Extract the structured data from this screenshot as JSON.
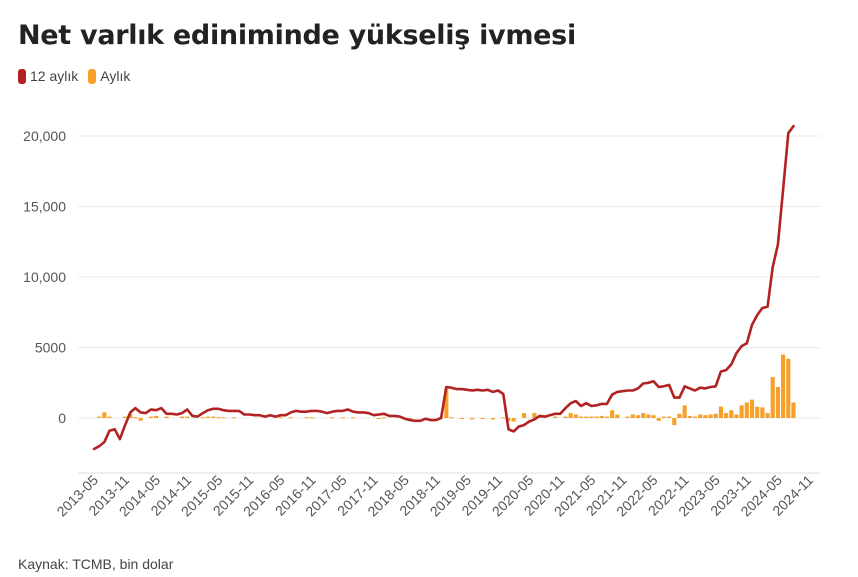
{
  "header": {
    "title": "Net varlık ediniminde yükseliş ivmesi"
  },
  "legend": [
    {
      "label": "12 aylık",
      "color": "#b22222"
    },
    {
      "label": "Aylık",
      "color": "#f7a02a"
    }
  ],
  "footer": {
    "source": "Kaynak: TCMB, bin dolar"
  },
  "chart_data": {
    "type": "line",
    "x_unit": "month",
    "xlim": [
      "2013-05",
      "2024-11"
    ],
    "ylim": [
      -4000,
      22000
    ],
    "y_ticks": [
      0,
      5000,
      10000,
      15000,
      20000
    ],
    "y_tick_labels": [
      "0",
      "5000",
      "10,000",
      "15,000",
      "20,000"
    ],
    "x_tick_labels": [
      "2013-05",
      "2013-11",
      "2014-05",
      "2014-11",
      "2015-05",
      "2015-11",
      "2016-05",
      "2016-11",
      "2017-05",
      "2017-11",
      "2018-05",
      "2018-11",
      "2019-05",
      "2019-11",
      "2020-05",
      "2020-11",
      "2021-05",
      "2021-11",
      "2022-05",
      "2022-11",
      "2023-05",
      "2023-11",
      "2024-05",
      "2024-11"
    ],
    "grid": "horizontal",
    "legend_position": "top-left",
    "series": [
      {
        "name": "12 aylık",
        "type": "line",
        "color": "#b22222",
        "points": [
          [
            "2013-05",
            -2200
          ],
          [
            "2013-06",
            -2000
          ],
          [
            "2013-07",
            -1700
          ],
          [
            "2013-08",
            -900
          ],
          [
            "2013-09",
            -800
          ],
          [
            "2013-10",
            -1500
          ],
          [
            "2013-11",
            -500
          ],
          [
            "2013-12",
            400
          ],
          [
            "2014-01",
            700
          ],
          [
            "2014-02",
            400
          ],
          [
            "2014-03",
            350
          ],
          [
            "2014-04",
            600
          ],
          [
            "2014-05",
            550
          ],
          [
            "2014-06",
            700
          ],
          [
            "2014-07",
            300
          ],
          [
            "2014-08",
            300
          ],
          [
            "2014-09",
            250
          ],
          [
            "2014-10",
            350
          ],
          [
            "2014-11",
            600
          ],
          [
            "2014-12",
            150
          ],
          [
            "2015-01",
            100
          ],
          [
            "2015-02",
            350
          ],
          [
            "2015-03",
            550
          ],
          [
            "2015-04",
            650
          ],
          [
            "2015-05",
            650
          ],
          [
            "2015-06",
            550
          ],
          [
            "2015-07",
            500
          ],
          [
            "2015-08",
            500
          ],
          [
            "2015-09",
            500
          ],
          [
            "2015-10",
            250
          ],
          [
            "2015-11",
            250
          ],
          [
            "2015-12",
            200
          ],
          [
            "2016-01",
            200
          ],
          [
            "2016-02",
            100
          ],
          [
            "2016-03",
            200
          ],
          [
            "2016-04",
            100
          ],
          [
            "2016-05",
            200
          ],
          [
            "2016-06",
            200
          ],
          [
            "2016-07",
            400
          ],
          [
            "2016-08",
            500
          ],
          [
            "2016-09",
            450
          ],
          [
            "2016-10",
            450
          ],
          [
            "2016-11",
            500
          ],
          [
            "2016-12",
            500
          ],
          [
            "2017-01",
            450
          ],
          [
            "2017-02",
            350
          ],
          [
            "2017-03",
            450
          ],
          [
            "2017-04",
            500
          ],
          [
            "2017-05",
            500
          ],
          [
            "2017-06",
            600
          ],
          [
            "2017-07",
            450
          ],
          [
            "2017-08",
            400
          ],
          [
            "2017-09",
            400
          ],
          [
            "2017-10",
            350
          ],
          [
            "2017-11",
            200
          ],
          [
            "2017-12",
            250
          ],
          [
            "2018-01",
            300
          ],
          [
            "2018-02",
            150
          ],
          [
            "2018-03",
            150
          ],
          [
            "2018-04",
            100
          ],
          [
            "2018-05",
            -50
          ],
          [
            "2018-06",
            -150
          ],
          [
            "2018-07",
            -200
          ],
          [
            "2018-08",
            -200
          ],
          [
            "2018-09",
            -50
          ],
          [
            "2018-10",
            -150
          ],
          [
            "2018-11",
            -150
          ],
          [
            "2018-12",
            0
          ],
          [
            "2019-01",
            2200
          ],
          [
            "2019-02",
            2150
          ],
          [
            "2019-03",
            2050
          ],
          [
            "2019-04",
            2050
          ],
          [
            "2019-05",
            2000
          ],
          [
            "2019-06",
            1950
          ],
          [
            "2019-07",
            2000
          ],
          [
            "2019-08",
            1950
          ],
          [
            "2019-09",
            2000
          ],
          [
            "2019-10",
            1850
          ],
          [
            "2019-11",
            1950
          ],
          [
            "2019-12",
            1700
          ],
          [
            "2020-01",
            -800
          ],
          [
            "2020-02",
            -950
          ],
          [
            "2020-03",
            -600
          ],
          [
            "2020-04",
            -500
          ],
          [
            "2020-05",
            -250
          ],
          [
            "2020-06",
            -100
          ],
          [
            "2020-07",
            150
          ],
          [
            "2020-08",
            100
          ],
          [
            "2020-09",
            200
          ],
          [
            "2020-10",
            300
          ],
          [
            "2020-11",
            300
          ],
          [
            "2020-12",
            700
          ],
          [
            "2021-01",
            1050
          ],
          [
            "2021-02",
            1200
          ],
          [
            "2021-03",
            850
          ],
          [
            "2021-04",
            1050
          ],
          [
            "2021-05",
            850
          ],
          [
            "2021-06",
            900
          ],
          [
            "2021-07",
            1000
          ],
          [
            "2021-08",
            1000
          ],
          [
            "2021-09",
            1650
          ],
          [
            "2021-10",
            1850
          ],
          [
            "2021-11",
            1900
          ],
          [
            "2021-12",
            1950
          ],
          [
            "2022-01",
            1950
          ],
          [
            "2022-02",
            2100
          ],
          [
            "2022-03",
            2450
          ],
          [
            "2022-04",
            2500
          ],
          [
            "2022-05",
            2600
          ],
          [
            "2022-06",
            2200
          ],
          [
            "2022-07",
            2250
          ],
          [
            "2022-08",
            2350
          ],
          [
            "2022-09",
            1450
          ],
          [
            "2022-10",
            1450
          ],
          [
            "2022-11",
            2250
          ],
          [
            "2022-12",
            2100
          ],
          [
            "2023-01",
            1950
          ],
          [
            "2023-02",
            2150
          ],
          [
            "2023-03",
            2100
          ],
          [
            "2023-04",
            2200
          ],
          [
            "2023-05",
            2250
          ],
          [
            "2023-06",
            3300
          ],
          [
            "2023-07",
            3400
          ],
          [
            "2023-08",
            3800
          ],
          [
            "2023-09",
            4600
          ],
          [
            "2023-10",
            5100
          ],
          [
            "2023-11",
            5300
          ],
          [
            "2023-12",
            6600
          ],
          [
            "2024-01",
            7300
          ],
          [
            "2024-02",
            7800
          ],
          [
            "2024-03",
            7900
          ],
          [
            "2024-04",
            10700
          ],
          [
            "2024-05",
            12300
          ],
          [
            "2024-06",
            16200
          ],
          [
            "2024-07",
            20200
          ],
          [
            "2024-08",
            20700
          ]
        ]
      },
      {
        "name": "Aylık",
        "type": "bar",
        "color": "#f7a02a",
        "points": [
          [
            "2013-06",
            100
          ],
          [
            "2013-07",
            400
          ],
          [
            "2013-08",
            100
          ],
          [
            "2013-11",
            100
          ],
          [
            "2013-12",
            300
          ],
          [
            "2014-01",
            50
          ],
          [
            "2014-02",
            -200
          ],
          [
            "2014-04",
            100
          ],
          [
            "2014-05",
            150
          ],
          [
            "2014-07",
            100
          ],
          [
            "2014-10",
            100
          ],
          [
            "2014-11",
            100
          ],
          [
            "2015-02",
            50
          ],
          [
            "2015-03",
            100
          ],
          [
            "2015-04",
            100
          ],
          [
            "2015-05",
            50
          ],
          [
            "2015-06",
            50
          ],
          [
            "2015-08",
            50
          ],
          [
            "2016-05",
            50
          ],
          [
            "2016-07",
            50
          ],
          [
            "2016-10",
            50
          ],
          [
            "2016-11",
            50
          ],
          [
            "2017-03",
            50
          ],
          [
            "2017-05",
            50
          ],
          [
            "2017-07",
            50
          ],
          [
            "2017-12",
            -50
          ],
          [
            "2018-01",
            50
          ],
          [
            "2018-06",
            -50
          ],
          [
            "2018-09",
            -50
          ],
          [
            "2018-12",
            50
          ],
          [
            "2019-01",
            2050
          ],
          [
            "2019-02",
            50
          ],
          [
            "2019-04",
            -50
          ],
          [
            "2019-06",
            -100
          ],
          [
            "2019-08",
            -50
          ],
          [
            "2019-10",
            -100
          ],
          [
            "2019-12",
            50
          ],
          [
            "2020-01",
            -200
          ],
          [
            "2020-02",
            -250
          ],
          [
            "2020-04",
            350
          ],
          [
            "2020-06",
            350
          ],
          [
            "2020-07",
            100
          ],
          [
            "2020-08",
            100
          ],
          [
            "2020-10",
            100
          ],
          [
            "2020-12",
            100
          ],
          [
            "2021-01",
            350
          ],
          [
            "2021-02",
            250
          ],
          [
            "2021-03",
            100
          ],
          [
            "2021-04",
            100
          ],
          [
            "2021-05",
            100
          ],
          [
            "2021-06",
            100
          ],
          [
            "2021-07",
            150
          ],
          [
            "2021-08",
            100
          ],
          [
            "2021-09",
            550
          ],
          [
            "2021-10",
            250
          ],
          [
            "2021-12",
            100
          ],
          [
            "2022-01",
            250
          ],
          [
            "2022-02",
            200
          ],
          [
            "2022-03",
            350
          ],
          [
            "2022-04",
            250
          ],
          [
            "2022-05",
            200
          ],
          [
            "2022-06",
            -200
          ],
          [
            "2022-07",
            100
          ],
          [
            "2022-08",
            100
          ],
          [
            "2022-09",
            -500
          ],
          [
            "2022-10",
            300
          ],
          [
            "2022-11",
            900
          ],
          [
            "2022-12",
            150
          ],
          [
            "2023-01",
            100
          ],
          [
            "2023-02",
            250
          ],
          [
            "2023-03",
            200
          ],
          [
            "2023-04",
            250
          ],
          [
            "2023-05",
            300
          ],
          [
            "2023-06",
            800
          ],
          [
            "2023-07",
            350
          ],
          [
            "2023-08",
            550
          ],
          [
            "2023-09",
            250
          ],
          [
            "2023-10",
            900
          ],
          [
            "2023-11",
            1100
          ],
          [
            "2023-12",
            1300
          ],
          [
            "2024-01",
            800
          ],
          [
            "2024-02",
            750
          ],
          [
            "2024-03",
            350
          ],
          [
            "2024-04",
            2900
          ],
          [
            "2024-05",
            2200
          ],
          [
            "2024-06",
            4500
          ],
          [
            "2024-07",
            4200
          ],
          [
            "2024-08",
            1100
          ]
        ]
      }
    ]
  }
}
